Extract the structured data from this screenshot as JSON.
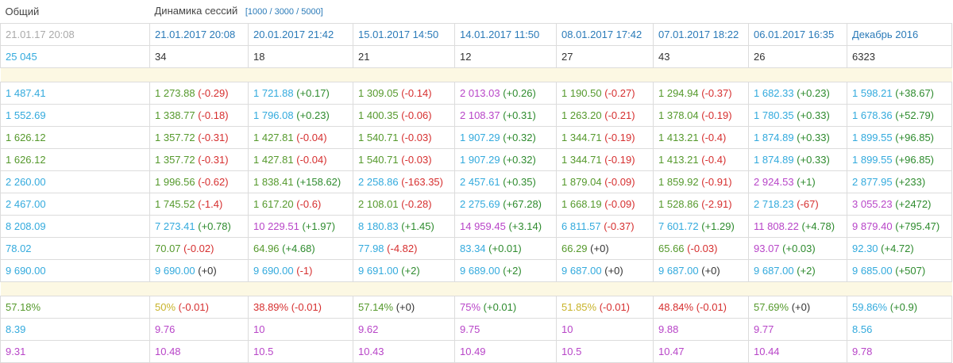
{
  "header": {
    "col0": "Общий",
    "title": "Динамика сессий",
    "limits": "[1000 / 3000 / 5000]"
  },
  "dates": {
    "base": "21.01.17 20:08",
    "cols": [
      "21.01.2017 20:08",
      "20.01.2017 21:42",
      "15.01.2017 14:50",
      "14.01.2017 11:50",
      "08.01.2017 17:42",
      "07.01.2017 18:22",
      "06.01.2017 16:35",
      "Декабрь 2016"
    ]
  },
  "sessions": {
    "base": "25 045",
    "cols": [
      "34",
      "18",
      "21",
      "12",
      "27",
      "43",
      "26",
      "6323"
    ]
  },
  "block1": [
    {
      "base": "1 487.41",
      "bc": "lblue",
      "cells": [
        [
          "1 273.88",
          "green",
          "(-0.29)",
          "neg"
        ],
        [
          "1 721.88",
          "lblue",
          "(+0.17)",
          "pos"
        ],
        [
          "1 309.05",
          "green",
          "(-0.14)",
          "neg"
        ],
        [
          "2 013.03",
          "violet",
          "(+0.26)",
          "pos"
        ],
        [
          "1 190.50",
          "green",
          "(-0.27)",
          "neg"
        ],
        [
          "1 294.94",
          "green",
          "(-0.37)",
          "neg"
        ],
        [
          "1 682.33",
          "lblue",
          "(+0.23)",
          "pos"
        ],
        [
          "1 598.21",
          "lblue",
          "(+38.67)",
          "pos"
        ]
      ]
    },
    {
      "base": "1 552.69",
      "bc": "lblue",
      "cells": [
        [
          "1 338.77",
          "green",
          "(-0.18)",
          "neg"
        ],
        [
          "1 796.08",
          "lblue",
          "(+0.23)",
          "pos"
        ],
        [
          "1 400.35",
          "green",
          "(-0.06)",
          "neg"
        ],
        [
          "2 108.37",
          "violet",
          "(+0.31)",
          "pos"
        ],
        [
          "1 263.20",
          "green",
          "(-0.21)",
          "neg"
        ],
        [
          "1 378.04",
          "green",
          "(-0.19)",
          "neg"
        ],
        [
          "1 780.35",
          "lblue",
          "(+0.33)",
          "pos"
        ],
        [
          "1 678.36",
          "lblue",
          "(+52.79)",
          "pos"
        ]
      ]
    },
    {
      "base": "1 626.12",
      "bc": "green",
      "cells": [
        [
          "1 357.72",
          "green",
          "(-0.31)",
          "neg"
        ],
        [
          "1 427.81",
          "green",
          "(-0.04)",
          "neg"
        ],
        [
          "1 540.71",
          "green",
          "(-0.03)",
          "neg"
        ],
        [
          "1 907.29",
          "lblue",
          "(+0.32)",
          "pos"
        ],
        [
          "1 344.71",
          "green",
          "(-0.19)",
          "neg"
        ],
        [
          "1 413.21",
          "green",
          "(-0.4)",
          "neg"
        ],
        [
          "1 874.89",
          "lblue",
          "(+0.33)",
          "pos"
        ],
        [
          "1 899.55",
          "lblue",
          "(+96.85)",
          "pos"
        ]
      ]
    },
    {
      "base": "1 626.12",
      "bc": "green",
      "cells": [
        [
          "1 357.72",
          "green",
          "(-0.31)",
          "neg"
        ],
        [
          "1 427.81",
          "green",
          "(-0.04)",
          "neg"
        ],
        [
          "1 540.71",
          "green",
          "(-0.03)",
          "neg"
        ],
        [
          "1 907.29",
          "lblue",
          "(+0.32)",
          "pos"
        ],
        [
          "1 344.71",
          "green",
          "(-0.19)",
          "neg"
        ],
        [
          "1 413.21",
          "green",
          "(-0.4)",
          "neg"
        ],
        [
          "1 874.89",
          "lblue",
          "(+0.33)",
          "pos"
        ],
        [
          "1 899.55",
          "lblue",
          "(+96.85)",
          "pos"
        ]
      ]
    },
    {
      "base": "2 260.00",
      "bc": "lblue",
      "cells": [
        [
          "1 996.56",
          "green",
          "(-0.62)",
          "neg"
        ],
        [
          "1 838.41",
          "green",
          "(+158.62)",
          "pos"
        ],
        [
          "2 258.86",
          "lblue",
          "(-163.35)",
          "neg"
        ],
        [
          "2 457.61",
          "lblue",
          "(+0.35)",
          "pos"
        ],
        [
          "1 879.04",
          "green",
          "(-0.09)",
          "neg"
        ],
        [
          "1 859.92",
          "green",
          "(-0.91)",
          "neg"
        ],
        [
          "2 924.53",
          "violet",
          "(+1)",
          "pos"
        ],
        [
          "2 877.95",
          "lblue",
          "(+233)",
          "pos"
        ]
      ]
    },
    {
      "base": "2 467.00",
      "bc": "lblue",
      "cells": [
        [
          "1 745.52",
          "green",
          "(-1.4)",
          "neg"
        ],
        [
          "1 617.20",
          "green",
          "(-0.6)",
          "neg"
        ],
        [
          "2 108.01",
          "green",
          "(-0.28)",
          "neg"
        ],
        [
          "2 275.69",
          "lblue",
          "(+67.28)",
          "pos"
        ],
        [
          "1 668.19",
          "green",
          "(-0.09)",
          "neg"
        ],
        [
          "1 528.86",
          "green",
          "(-2.91)",
          "neg"
        ],
        [
          "2 718.23",
          "lblue",
          "(-67)",
          "neg"
        ],
        [
          "3 055.23",
          "violet",
          "(+2472)",
          "pos"
        ]
      ]
    },
    {
      "base": "8 208.09",
      "bc": "lblue",
      "cells": [
        [
          "7 273.41",
          "lblue",
          "(+0.78)",
          "pos"
        ],
        [
          "10 229.51",
          "violet",
          "(+1.97)",
          "pos"
        ],
        [
          "8 180.83",
          "lblue",
          "(+1.45)",
          "pos"
        ],
        [
          "14 959.45",
          "violet",
          "(+3.14)",
          "pos"
        ],
        [
          "6 811.57",
          "lblue",
          "(-0.37)",
          "neg"
        ],
        [
          "7 601.72",
          "lblue",
          "(+1.29)",
          "pos"
        ],
        [
          "11 808.22",
          "violet",
          "(+4.78)",
          "pos"
        ],
        [
          "9 879.40",
          "violet",
          "(+795.47)",
          "pos"
        ]
      ]
    },
    {
      "base": "78.02",
      "bc": "lblue",
      "cells": [
        [
          "70.07",
          "green",
          "(-0.02)",
          "neg"
        ],
        [
          "64.96",
          "green",
          "(+4.68)",
          "pos"
        ],
        [
          "77.98",
          "lblue",
          "(-4.82)",
          "neg"
        ],
        [
          "83.34",
          "lblue",
          "(+0.01)",
          "pos"
        ],
        [
          "66.29",
          "green",
          "(+0)",
          "zero"
        ],
        [
          "65.66",
          "green",
          "(-0.03)",
          "neg"
        ],
        [
          "93.07",
          "violet",
          "(+0.03)",
          "pos"
        ],
        [
          "92.30",
          "lblue",
          "(+4.72)",
          "pos"
        ]
      ]
    },
    {
      "base": "9 690.00",
      "bc": "lblue",
      "cells": [
        [
          "9 690.00",
          "lblue",
          "(+0)",
          "zero"
        ],
        [
          "9 690.00",
          "lblue",
          "(-1)",
          "neg"
        ],
        [
          "9 691.00",
          "lblue",
          "(+2)",
          "pos"
        ],
        [
          "9 689.00",
          "lblue",
          "(+2)",
          "pos"
        ],
        [
          "9 687.00",
          "lblue",
          "(+0)",
          "zero"
        ],
        [
          "9 687.00",
          "lblue",
          "(+0)",
          "zero"
        ],
        [
          "9 687.00",
          "lblue",
          "(+2)",
          "pos"
        ],
        [
          "9 685.00",
          "lblue",
          "(+507)",
          "pos"
        ]
      ]
    }
  ],
  "block2": [
    {
      "base": "57.18%",
      "bc": "green",
      "cells": [
        [
          "50%",
          "yellow",
          "(-0.01)",
          "neg"
        ],
        [
          "38.89%",
          "red",
          "(-0.01)",
          "neg"
        ],
        [
          "57.14%",
          "green",
          "(+0)",
          "zero"
        ],
        [
          "75%",
          "violet",
          "(+0.01)",
          "pos"
        ],
        [
          "51.85%",
          "yellow",
          "(-0.01)",
          "neg"
        ],
        [
          "48.84%",
          "red",
          "(-0.01)",
          "neg"
        ],
        [
          "57.69%",
          "green",
          "(+0)",
          "zero"
        ],
        [
          "59.86%",
          "lblue",
          "(+0.9)",
          "pos"
        ]
      ]
    },
    {
      "base": "8.39",
      "bc": "lblue",
      "cells": [
        [
          "9.76",
          "violet",
          "",
          ""
        ],
        [
          "10",
          "violet",
          "",
          ""
        ],
        [
          "9.62",
          "violet",
          "",
          ""
        ],
        [
          "9.75",
          "violet",
          "",
          ""
        ],
        [
          "10",
          "violet",
          "",
          ""
        ],
        [
          "9.88",
          "violet",
          "",
          ""
        ],
        [
          "9.77",
          "violet",
          "",
          ""
        ],
        [
          "8.56",
          "lblue",
          "",
          ""
        ]
      ]
    },
    {
      "base": "9.31",
      "bc": "violet",
      "cells": [
        [
          "10.48",
          "violet",
          "",
          ""
        ],
        [
          "10.5",
          "violet",
          "",
          ""
        ],
        [
          "10.43",
          "violet",
          "",
          ""
        ],
        [
          "10.49",
          "violet",
          "",
          ""
        ],
        [
          "10.5",
          "violet",
          "",
          ""
        ],
        [
          "10.47",
          "violet",
          "",
          ""
        ],
        [
          "10.44",
          "violet",
          "",
          ""
        ],
        [
          "9.78",
          "violet",
          "",
          ""
        ]
      ]
    }
  ]
}
